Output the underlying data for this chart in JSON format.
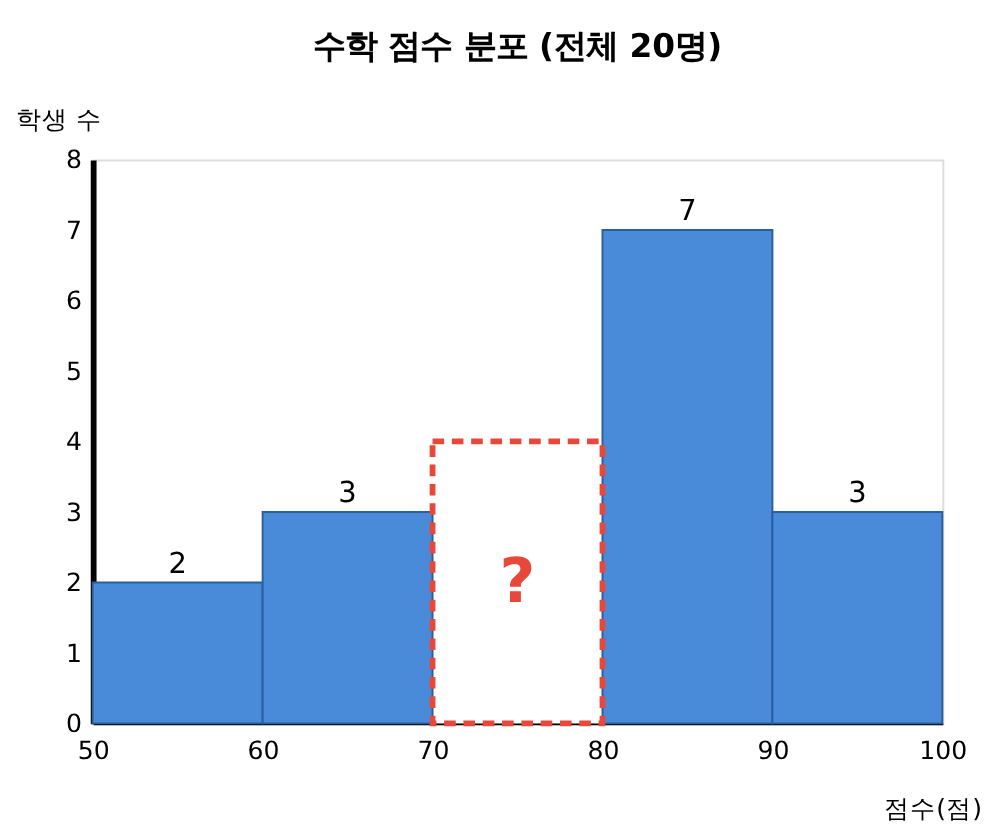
{
  "chart_data": {
    "type": "histogram",
    "title": "수학 점수 분포 (전체 20명)",
    "xlabel": "점수(점)",
    "ylabel": "학생 수",
    "bins": [
      50,
      60,
      70,
      80,
      90,
      100
    ],
    "series": [
      {
        "values": [
          2,
          3,
          null,
          7,
          3
        ],
        "color": "#4a8bd9",
        "value_labels": [
          "2",
          "3",
          null,
          "7",
          "3"
        ]
      },
      {
        "values": [
          null,
          null,
          4,
          null,
          null
        ],
        "color": "#e8483a",
        "line_style": "dashed"
      }
    ],
    "annotations": [
      "?"
    ],
    "xlim": [
      50,
      100
    ],
    "xticks": [
      50,
      60,
      70,
      80,
      90,
      100
    ],
    "ylim": [
      0,
      8
    ],
    "yticks": [
      0,
      1,
      2,
      3,
      4,
      5,
      6,
      7,
      8
    ],
    "grid": false
  }
}
